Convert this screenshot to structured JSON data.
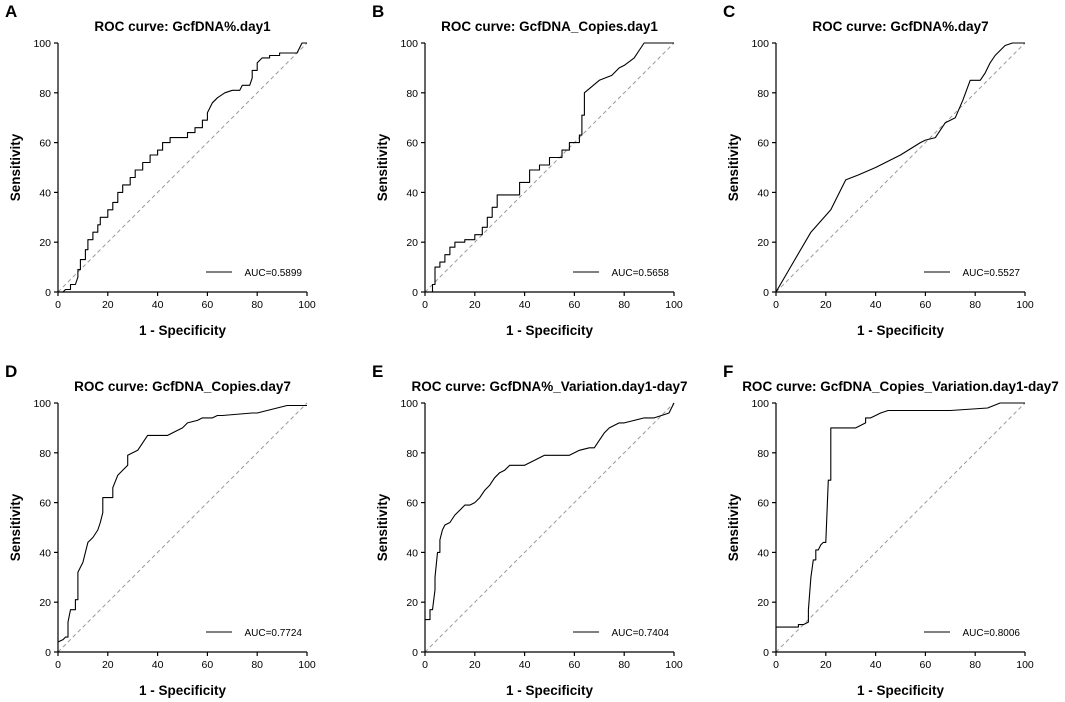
{
  "figure": {
    "background": "#ffffff",
    "curve_color": "#000000",
    "reference_color": "#9a9a9a"
  },
  "chart_data": [
    {
      "panel": "A",
      "type": "line",
      "title": "ROC curve: GcfDNA%.day1",
      "xlabel": "1 - Specificity",
      "ylabel": "Sensitivity",
      "xlim": [
        0,
        100
      ],
      "ylim": [
        0,
        100
      ],
      "xticks": [
        "0",
        "20",
        "40",
        "60",
        "80",
        "100"
      ],
      "yticks": [
        "0",
        "20",
        "40",
        "60",
        "80",
        "100"
      ],
      "legend": "AUC=0.5899",
      "legend_position": "bottom-right",
      "reference_line": "diagonal",
      "x": [
        0,
        2,
        3,
        5,
        5,
        7,
        8,
        8,
        9,
        9,
        11,
        11,
        12,
        12,
        14,
        14,
        16,
        16,
        17,
        17,
        20,
        20,
        22,
        22,
        24,
        24,
        26,
        26,
        29,
        29,
        31,
        31,
        34,
        34,
        37,
        37,
        40,
        40,
        42,
        42,
        45,
        45,
        48,
        48,
        52,
        52,
        55,
        55,
        58,
        58,
        60,
        60,
        62,
        64,
        67,
        70,
        73,
        74,
        77,
        78,
        78,
        80,
        80,
        82,
        85,
        85,
        87,
        89,
        89,
        92,
        94,
        96,
        98,
        100
      ],
      "y": [
        0,
        0,
        1,
        1,
        3,
        3,
        6,
        9,
        9,
        13,
        13,
        17,
        17,
        21,
        21,
        24,
        24,
        27,
        27,
        30,
        30,
        33,
        33,
        36,
        36,
        40,
        40,
        43,
        43,
        46,
        46,
        49,
        49,
        52,
        52,
        55,
        55,
        57,
        57,
        60,
        60,
        62,
        62,
        62,
        62,
        64,
        64,
        66,
        66,
        69,
        69,
        72,
        76,
        78,
        80,
        81,
        81,
        83,
        83,
        86,
        89,
        89,
        92,
        94,
        94,
        95,
        95,
        95,
        96,
        96,
        96,
        96,
        100,
        100
      ]
    },
    {
      "panel": "B",
      "type": "line",
      "title": "ROC curve: GcfDNA_Copies.day1",
      "xlabel": "1 - Specificity",
      "ylabel": "Sensitivity",
      "xlim": [
        0,
        100
      ],
      "ylim": [
        0,
        100
      ],
      "xticks": [
        "0",
        "20",
        "40",
        "60",
        "80",
        "100"
      ],
      "yticks": [
        "0",
        "20",
        "40",
        "60",
        "80",
        "100"
      ],
      "legend": "AUC=0.5658",
      "legend_position": "bottom-right",
      "reference_line": "diagonal",
      "x": [
        0,
        3,
        3,
        4,
        4,
        6,
        6,
        8,
        8,
        10,
        10,
        12,
        12,
        16,
        16,
        20,
        20,
        23,
        23,
        25,
        25,
        27,
        27,
        29,
        29,
        38,
        38,
        42,
        42,
        46,
        46,
        50,
        50,
        55,
        55,
        58,
        58,
        62,
        62,
        63,
        63,
        64,
        64,
        70,
        75,
        78,
        80,
        84,
        86,
        88,
        100
      ],
      "y": [
        0,
        0,
        3,
        3,
        10,
        10,
        12,
        12,
        15,
        15,
        18,
        18,
        20,
        20,
        21,
        21,
        23,
        23,
        26,
        26,
        30,
        30,
        34,
        34,
        39,
        39,
        44,
        44,
        49,
        49,
        51,
        51,
        54,
        54,
        57,
        57,
        60,
        60,
        63,
        63,
        71,
        71,
        80,
        85,
        87,
        90,
        91,
        94,
        97,
        100,
        100
      ]
    },
    {
      "panel": "C",
      "type": "line",
      "title": "ROC curve: GcfDNA%.day7",
      "xlabel": "1 - Specificity",
      "ylabel": "Sensitivity",
      "xlim": [
        0,
        100
      ],
      "ylim": [
        0,
        100
      ],
      "xticks": [
        "0",
        "20",
        "40",
        "60",
        "80",
        "100"
      ],
      "yticks": [
        "0",
        "20",
        "40",
        "60",
        "80",
        "100"
      ],
      "legend": "AUC=0.5527",
      "legend_position": "bottom-right",
      "reference_line": "diagonal",
      "x": [
        0,
        7,
        14,
        22,
        28,
        33,
        40,
        50,
        58,
        60,
        64,
        66,
        68,
        72,
        75,
        78,
        82,
        84,
        86,
        88,
        90,
        92,
        95,
        100
      ],
      "y": [
        0,
        12,
        24,
        33,
        45,
        47,
        50,
        55,
        60,
        61,
        62,
        65,
        68,
        70,
        77,
        85,
        85,
        88,
        92,
        95,
        97,
        99,
        100,
        100
      ]
    },
    {
      "panel": "D",
      "type": "line",
      "title": "ROC curve: GcfDNA_Copies.day7",
      "xlabel": "1 - Specificity",
      "ylabel": "Sensitivity",
      "xlim": [
        0,
        100
      ],
      "ylim": [
        0,
        100
      ],
      "xticks": [
        "0",
        "20",
        "40",
        "60",
        "80",
        "100"
      ],
      "yticks": [
        "0",
        "20",
        "40",
        "60",
        "80",
        "100"
      ],
      "legend": "AUC=0.7724",
      "legend_position": "bottom-right",
      "reference_line": "diagonal",
      "x": [
        0,
        2,
        3,
        4,
        4,
        5,
        6,
        7,
        7,
        8,
        8,
        10,
        11,
        12,
        14,
        16,
        17,
        18,
        18,
        20,
        22,
        22,
        24,
        26,
        28,
        28,
        30,
        32,
        34,
        36,
        38,
        40,
        44,
        46,
        48,
        50,
        52,
        56,
        58,
        60,
        62,
        64,
        66,
        78,
        80,
        92,
        100
      ],
      "y": [
        4,
        5,
        6,
        6,
        12,
        17,
        17,
        17,
        21,
        21,
        32,
        36,
        40,
        44,
        46,
        49,
        52,
        56,
        62,
        62,
        62,
        66,
        71,
        73,
        75,
        79,
        80,
        81,
        84,
        87,
        87,
        87,
        87,
        88,
        89,
        90,
        92,
        93,
        94,
        94,
        94,
        95,
        95,
        96,
        96,
        99,
        99
      ]
    },
    {
      "panel": "E",
      "type": "line",
      "title": "ROC curve: GcfDNA%_Variation.day1-day7",
      "xlabel": "1 - Specificity",
      "ylabel": "Sensitivity",
      "xlim": [
        0,
        100
      ],
      "ylim": [
        0,
        100
      ],
      "xticks": [
        "0",
        "20",
        "40",
        "60",
        "80",
        "100"
      ],
      "yticks": [
        "0",
        "20",
        "40",
        "60",
        "80",
        "100"
      ],
      "legend": "AUC=0.7404",
      "legend_position": "bottom-right",
      "reference_line": "diagonal",
      "x": [
        0,
        1,
        2,
        2,
        3,
        4,
        4,
        5,
        6,
        6,
        7,
        8,
        8,
        10,
        12,
        14,
        16,
        18,
        20,
        22,
        24,
        26,
        28,
        30,
        32,
        34,
        36,
        38,
        40,
        42,
        44,
        46,
        48,
        50,
        54,
        58,
        62,
        66,
        68,
        70,
        72,
        74,
        76,
        78,
        80,
        84,
        88,
        92,
        95,
        98,
        100
      ],
      "y": [
        13,
        13,
        13,
        17,
        17,
        25,
        30,
        40,
        40,
        45,
        49,
        51,
        51,
        52,
        55,
        57,
        59,
        59,
        60,
        62,
        65,
        67,
        70,
        72,
        73,
        75,
        75,
        75,
        75,
        76,
        77,
        78,
        79,
        79,
        79,
        79,
        81,
        82,
        82,
        85,
        88,
        90,
        91,
        92,
        92,
        93,
        94,
        94,
        95,
        96,
        100
      ]
    },
    {
      "panel": "F",
      "type": "line",
      "title": "ROC curve: GcfDNA_Copies_Variation.day1-day7",
      "xlabel": "1 - Specificity",
      "ylabel": "Sensitivity",
      "xlim": [
        0,
        100
      ],
      "ylim": [
        0,
        100
      ],
      "xticks": [
        "0",
        "20",
        "40",
        "60",
        "80",
        "100"
      ],
      "yticks": [
        "0",
        "20",
        "40",
        "60",
        "80",
        "100"
      ],
      "legend": "AUC=0.8006",
      "legend_position": "bottom-right",
      "reference_line": "diagonal",
      "x": [
        0,
        9,
        9,
        11,
        13,
        13,
        14,
        15,
        16,
        16,
        17,
        18,
        19,
        20,
        21,
        22,
        22,
        30,
        32,
        34,
        36,
        36,
        38,
        40,
        42,
        45,
        50,
        70,
        85,
        90,
        100
      ],
      "y": [
        10,
        10,
        11,
        11,
        12,
        17,
        30,
        37,
        37,
        41,
        41,
        43,
        44,
        44,
        69,
        69,
        90,
        90,
        90,
        91,
        92,
        94,
        94,
        95,
        96,
        97,
        97,
        97,
        98,
        100,
        100
      ]
    }
  ]
}
